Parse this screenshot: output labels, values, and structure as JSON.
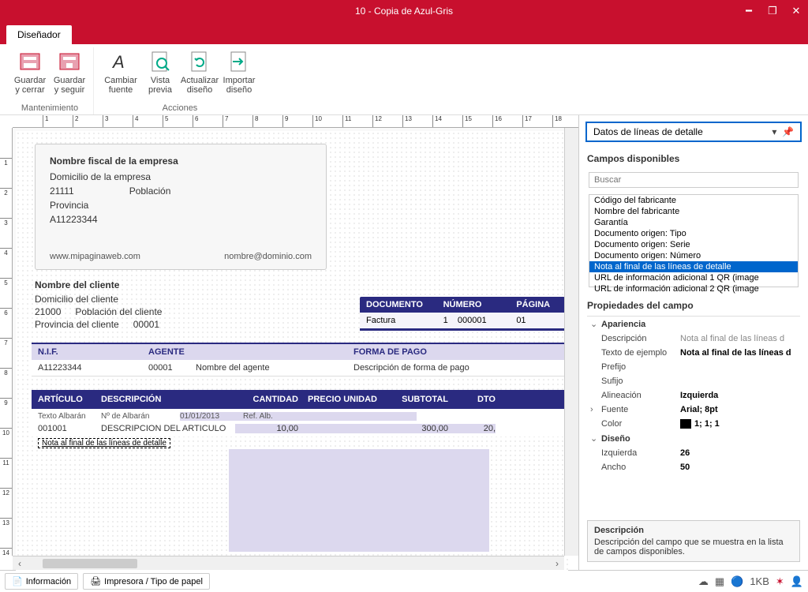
{
  "window": {
    "title": "10 - Copia de Azul-Gris"
  },
  "tab": {
    "label": "Diseñador"
  },
  "ribbon": {
    "groups": [
      {
        "label": "Mantenimiento",
        "buttons": [
          {
            "label": "Guardar y cerrar",
            "icon": "save-close"
          },
          {
            "label": "Guardar y seguir",
            "icon": "save"
          }
        ]
      },
      {
        "label": "Acciones",
        "buttons": [
          {
            "label": "Cambiar fuente",
            "icon": "font"
          },
          {
            "label": "Vista previa",
            "icon": "preview"
          },
          {
            "label": "Actualizar diseño",
            "icon": "refresh"
          },
          {
            "label": "Importar diseño",
            "icon": "import"
          }
        ]
      }
    ]
  },
  "company": {
    "name": "Nombre fiscal de la empresa",
    "address": "Domicilio de la empresa",
    "postal": "21111",
    "city": "Población",
    "province": "Provincia",
    "nif": "A11223344",
    "web": "www.mipaginaweb.com",
    "email": "nombre@dominio.com"
  },
  "client": {
    "name": "Nombre del cliente",
    "address": "Domicilio del cliente",
    "postal": "21000",
    "city": "Población del cliente",
    "province": "Provincia del cliente",
    "code": "00001"
  },
  "docmeta": {
    "headers": [
      "DOCUMENTO",
      "NÚMERO",
      "PÁGINA"
    ],
    "values": [
      "Factura",
      "1    000001",
      "01"
    ],
    "colwidths": [
      "100px",
      "95px",
      "55px"
    ]
  },
  "nif": {
    "headers": [
      "N.I.F.",
      "AGENTE",
      "",
      "FORMA DE PAGO"
    ],
    "values": [
      "A11223344",
      "00001",
      "Nombre del agente",
      "Descripción de forma de pago"
    ]
  },
  "articles": {
    "headers": [
      "ARTÍCULO",
      "DESCRIPCIÓN",
      "CANTIDAD",
      "PRECIO UNIDAD",
      "SUBTOTAL",
      "DTO"
    ],
    "extra": [
      "Texto Albarán",
      "Nº de Albarán",
      "01/01/2013",
      "Ref. Alb.",
      "",
      ""
    ],
    "main": [
      "001001",
      "DESCRIPCION DEL ARTICULO",
      "10,00",
      "",
      "300,00",
      "20,"
    ],
    "note": "Nota al final de las líneas de detalle"
  },
  "side": {
    "selector": "Datos de líneas de detalle",
    "fields_title": "Campos disponibles",
    "search_placeholder": "Buscar",
    "fields": [
      "Código del fabricante",
      "Nombre del fabricante",
      "Garantía",
      "Documento origen: Tipo",
      "Documento origen: Serie",
      "Documento origen: Número",
      "Nota al final de las líneas de detalle",
      "URL de información adicional 1 QR (image",
      "URL de información adicional 2 QR (image"
    ],
    "selected_field_index": 6,
    "props_title": "Propiedades del campo",
    "props": {
      "apariencia_label": "Apariencia",
      "descripcion_label": "Descripción",
      "descripcion_val": "Nota al final de las líneas d",
      "ejemplo_label": "Texto de ejemplo",
      "ejemplo_val": "Nota al final de las líneas d",
      "prefijo_label": "Prefijo",
      "sufijo_label": "Sufijo",
      "alineacion_label": "Alineación",
      "alineacion_val": "Izquierda",
      "fuente_label": "Fuente",
      "fuente_val": "Arial; 8pt",
      "color_label": "Color",
      "color_val": "1; 1; 1",
      "color_swatch": "#010101",
      "diseno_label": "Diseño",
      "izquierda_label": "Izquierda",
      "izquierda_val": "26",
      "ancho_label": "Ancho",
      "ancho_val": "50"
    },
    "desc": {
      "title": "Descripción",
      "text": "Descripción del campo que se muestra en la lista de campos disponibles."
    }
  },
  "status": {
    "info": "Información",
    "printer": "Impresora / Tipo de papel"
  },
  "colors": {
    "brand": "#c8102e",
    "header_blue": "#2a2a80",
    "light_purple": "#dcd8ee",
    "select_blue": "#0066cc"
  },
  "ruler": {
    "ticks": 18,
    "spacing": 38
  }
}
